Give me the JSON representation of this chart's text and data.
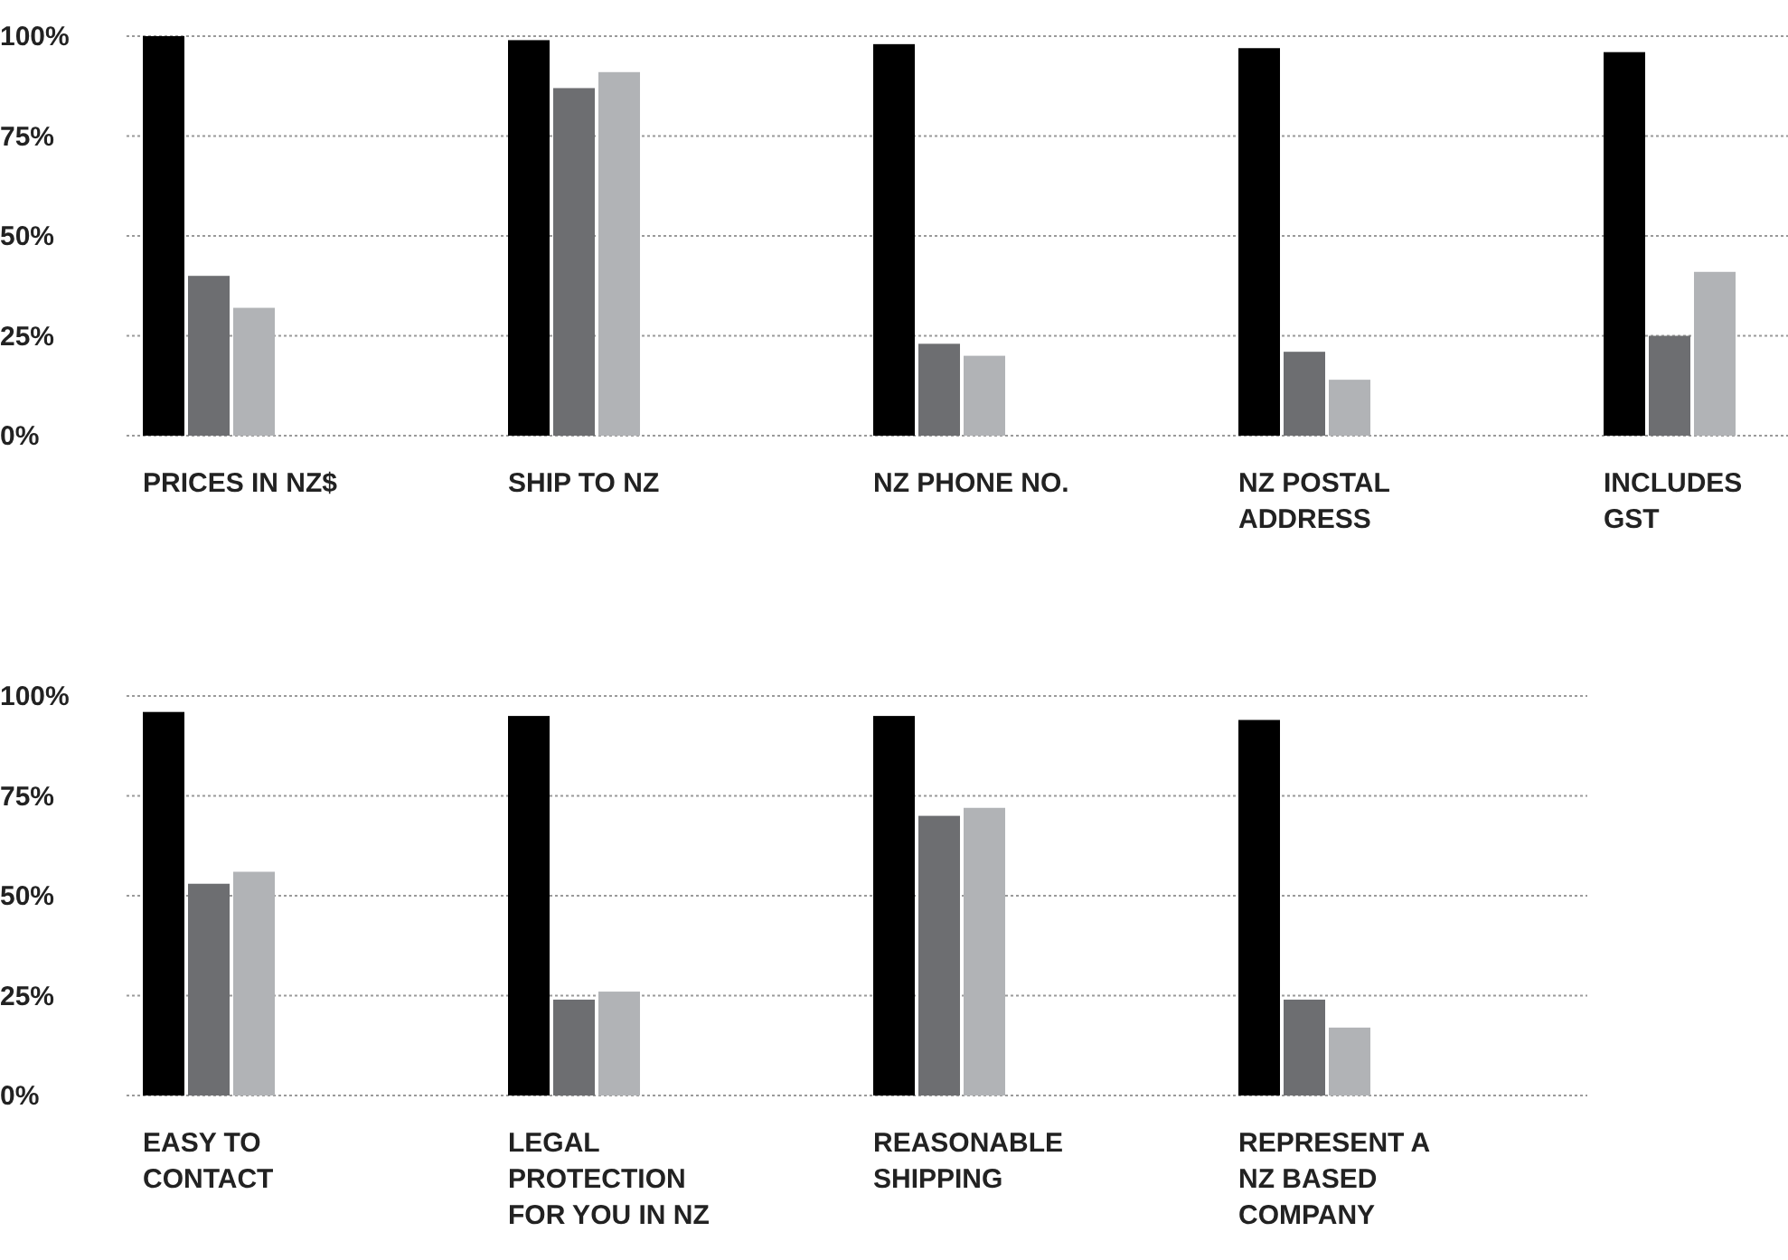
{
  "chart_data": [
    {
      "type": "bar",
      "categories": [
        "PRICES IN NZ$",
        "SHIP TO NZ",
        "NZ PHONE NO.",
        "NZ POSTAL ADDRESS",
        "INCLUDES GST"
      ],
      "series": [
        {
          "color": "#000000",
          "values": [
            100,
            99,
            98,
            97,
            96
          ]
        },
        {
          "color": "#6d6e71",
          "values": [
            40,
            87,
            23,
            21,
            25
          ]
        },
        {
          "color": "#b1b3b6",
          "values": [
            32,
            91,
            20,
            14,
            41
          ]
        }
      ],
      "ylim": [
        0,
        100
      ],
      "yticks": [
        {
          "value": 0,
          "label": "0%"
        },
        {
          "value": 25,
          "label": "25%"
        },
        {
          "value": 50,
          "label": "50%"
        },
        {
          "value": 75,
          "label": "75%"
        },
        {
          "value": 100,
          "label": "100%"
        }
      ],
      "grid": "y"
    },
    {
      "type": "bar",
      "categories": [
        "EASY TO CONTACT",
        "LEGAL PROTECTION FOR YOU IN NZ",
        "REASONABLE SHIPPING",
        "REPRESENT A NZ BASED COMPANY"
      ],
      "series": [
        {
          "color": "#000000",
          "values": [
            96,
            95,
            95,
            94
          ]
        },
        {
          "color": "#6d6e71",
          "values": [
            53,
            24,
            70,
            24
          ]
        },
        {
          "color": "#b1b3b6",
          "values": [
            56,
            26,
            72,
            17
          ]
        }
      ],
      "ylim": [
        0,
        100
      ],
      "yticks": [
        {
          "value": 0,
          "label": "0%"
        },
        {
          "value": 25,
          "label": "25%"
        },
        {
          "value": 50,
          "label": "50%"
        },
        {
          "value": 75,
          "label": "75%"
        },
        {
          "value": 100,
          "label": "100%"
        }
      ],
      "grid": "y"
    }
  ]
}
